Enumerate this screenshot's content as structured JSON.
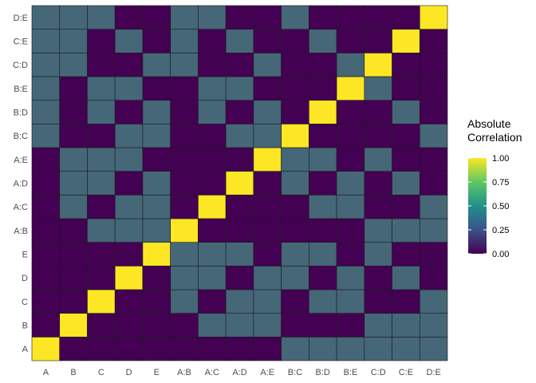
{
  "chart_data": {
    "type": "heatmap",
    "categories": [
      "A",
      "B",
      "C",
      "D",
      "E",
      "A:B",
      "A:C",
      "A:D",
      "A:E",
      "B:C",
      "B:D",
      "B:E",
      "C:D",
      "C:E",
      "D:E"
    ],
    "values": [
      [
        1.0,
        0.0,
        0.0,
        0.0,
        0.0,
        0.0,
        0.0,
        0.0,
        0.0,
        0.5,
        0.5,
        0.5,
        0.5,
        0.5,
        0.5
      ],
      [
        0.0,
        1.0,
        0.0,
        0.0,
        0.0,
        0.0,
        0.5,
        0.5,
        0.5,
        0.0,
        0.0,
        0.0,
        0.5,
        0.5,
        0.5
      ],
      [
        0.0,
        0.0,
        1.0,
        0.0,
        0.0,
        0.5,
        0.0,
        0.5,
        0.5,
        0.0,
        0.5,
        0.5,
        0.0,
        0.0,
        0.5
      ],
      [
        0.0,
        0.0,
        0.0,
        1.0,
        0.0,
        0.5,
        0.5,
        0.0,
        0.5,
        0.5,
        0.0,
        0.5,
        0.0,
        0.5,
        0.0
      ],
      [
        0.0,
        0.0,
        0.0,
        0.0,
        1.0,
        0.5,
        0.5,
        0.5,
        0.0,
        0.5,
        0.5,
        0.0,
        0.5,
        0.0,
        0.0
      ],
      [
        0.0,
        0.0,
        0.5,
        0.5,
        0.5,
        1.0,
        0.0,
        0.0,
        0.0,
        0.0,
        0.0,
        0.0,
        0.5,
        0.5,
        0.5
      ],
      [
        0.0,
        0.5,
        0.0,
        0.5,
        0.5,
        0.0,
        1.0,
        0.0,
        0.0,
        0.0,
        0.5,
        0.5,
        0.0,
        0.0,
        0.5
      ],
      [
        0.0,
        0.5,
        0.5,
        0.0,
        0.5,
        0.0,
        0.0,
        1.0,
        0.0,
        0.5,
        0.0,
        0.5,
        0.0,
        0.5,
        0.0
      ],
      [
        0.0,
        0.5,
        0.5,
        0.5,
        0.0,
        0.0,
        0.0,
        0.0,
        1.0,
        0.5,
        0.5,
        0.0,
        0.5,
        0.0,
        0.0
      ],
      [
        0.5,
        0.0,
        0.0,
        0.5,
        0.5,
        0.0,
        0.0,
        0.5,
        0.5,
        1.0,
        0.0,
        0.0,
        0.0,
        0.0,
        0.5
      ],
      [
        0.5,
        0.0,
        0.5,
        0.0,
        0.5,
        0.0,
        0.5,
        0.0,
        0.5,
        0.0,
        1.0,
        0.0,
        0.0,
        0.5,
        0.0
      ],
      [
        0.5,
        0.0,
        0.5,
        0.5,
        0.0,
        0.0,
        0.5,
        0.5,
        0.0,
        0.0,
        0.0,
        1.0,
        0.5,
        0.0,
        0.0
      ],
      [
        0.5,
        0.5,
        0.0,
        0.0,
        0.5,
        0.5,
        0.0,
        0.0,
        0.5,
        0.0,
        0.0,
        0.5,
        1.0,
        0.0,
        0.0
      ],
      [
        0.5,
        0.5,
        0.0,
        0.5,
        0.0,
        0.5,
        0.0,
        0.5,
        0.0,
        0.0,
        0.5,
        0.0,
        0.0,
        1.0,
        0.0
      ],
      [
        0.5,
        0.5,
        0.5,
        0.0,
        0.0,
        0.5,
        0.5,
        0.0,
        0.0,
        0.5,
        0.0,
        0.0,
        0.0,
        0.0,
        1.0
      ]
    ],
    "title": "",
    "xlabel": "",
    "ylabel": "",
    "legend": {
      "title_lines": [
        "Absolute",
        "Correlation"
      ],
      "ticks": [
        "1.00",
        "0.75",
        "0.50",
        "0.25",
        "0.00"
      ],
      "tick_values": [
        1.0,
        0.75,
        0.5,
        0.25,
        0.0
      ],
      "range": [
        0,
        1
      ],
      "placement": "right"
    },
    "color_scale": "viridis",
    "colors": {
      "low": "#440154",
      "mid": "#456778",
      "high": "#FDE725",
      "cell_border": "#1a1a1a",
      "grid": "#ebebeb"
    },
    "grid": true
  }
}
